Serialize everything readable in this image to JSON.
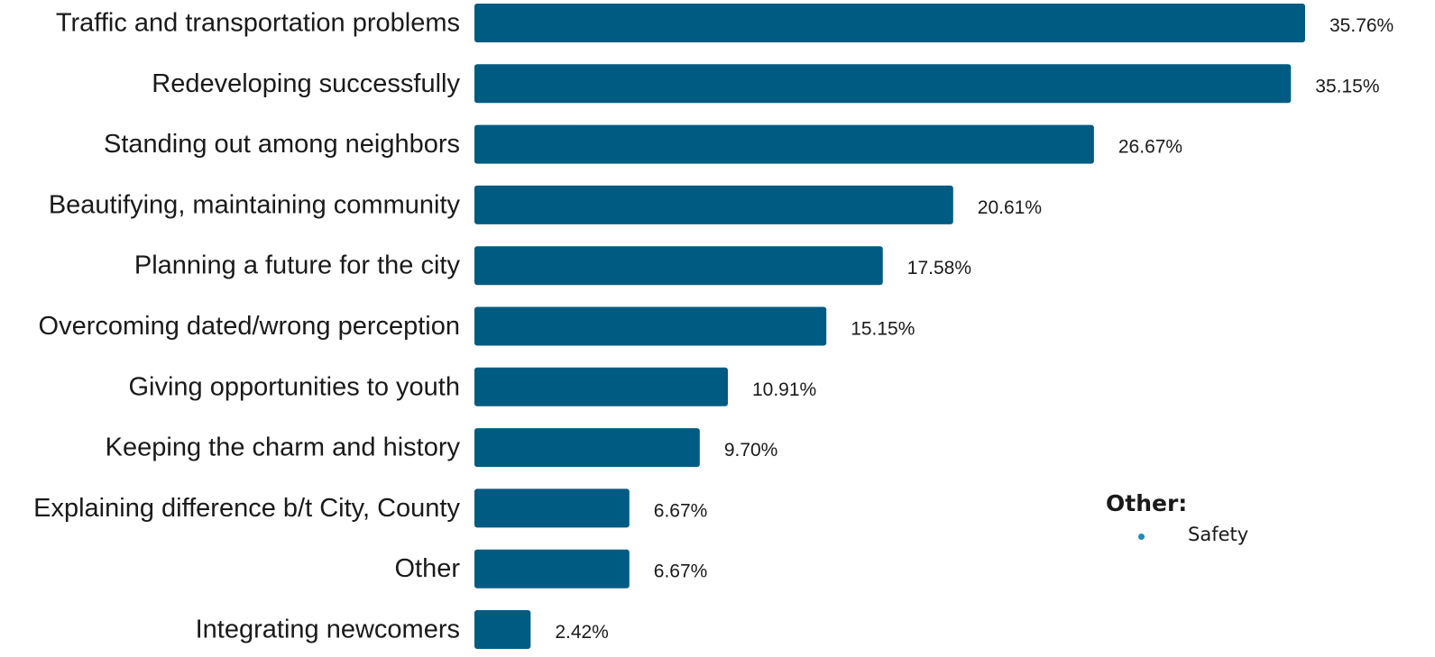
{
  "chart_data": {
    "type": "bar",
    "orientation": "horizontal",
    "categories": [
      "Traffic and transportation problems",
      "Redeveloping successfully",
      "Standing out among neighbors",
      "Beautifying, maintaining community",
      "Planning a future for the city",
      "Overcoming dated/wrong perception",
      "Giving opportunities to youth",
      "Keeping the charm and history",
      "Explaining difference b/t City, County",
      "Other",
      "Integrating newcomers"
    ],
    "values": [
      35.76,
      35.15,
      26.67,
      20.61,
      17.58,
      15.15,
      10.91,
      9.7,
      6.67,
      6.67,
      2.42
    ],
    "value_labels": [
      "35.76%",
      "35.15%",
      "26.67%",
      "20.61%",
      "17.58%",
      "15.15%",
      "10.91%",
      "9.70%",
      "6.67%",
      "6.67%",
      "2.42%"
    ],
    "title": "",
    "xlabel": "",
    "ylabel": "",
    "xlim": [
      0,
      35.76
    ],
    "grid": false,
    "bar_color": "#005b82"
  },
  "note": {
    "title": "Other:",
    "items": [
      "Safety"
    ],
    "bullet_color": "#1a8cc0"
  }
}
